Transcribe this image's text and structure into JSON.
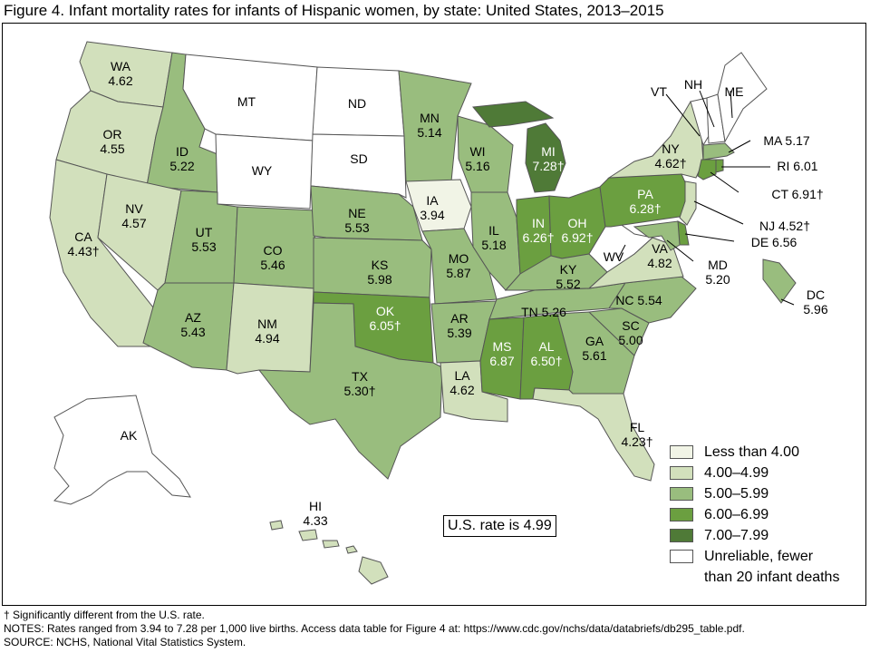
{
  "figure": {
    "title": "Figure 4. Infant mortality rates for infants of Hispanic women, by state: United States, 2013–2015",
    "us_rate_text": "U.S. rate is 4.99"
  },
  "colors": {
    "lt4": "#f1f4e6",
    "c4": "#d2e0bc",
    "c5": "#99bd7e",
    "c6": "#6b9f40",
    "c7": "#4f7a37",
    "unreliable": "#ffffff"
  },
  "legend": [
    {
      "cls": "lt4",
      "label": "Less than 4.00"
    },
    {
      "cls": "c4",
      "label": "4.00–4.99"
    },
    {
      "cls": "c5",
      "label": "5.00–5.99"
    },
    {
      "cls": "c6",
      "label": "6.00–6.99"
    },
    {
      "cls": "c7",
      "label": "7.00–7.99"
    },
    {
      "cls": "unreliable",
      "label": "Unreliable, fewer",
      "label2": "than 20 infant deaths"
    }
  ],
  "states": {
    "WA": {
      "abbr": "WA",
      "rate": "4.62",
      "cls": "c4"
    },
    "OR": {
      "abbr": "OR",
      "rate": "4.55",
      "cls": "c4"
    },
    "CA": {
      "abbr": "CA",
      "rate": "4.43†",
      "cls": "c4"
    },
    "ID": {
      "abbr": "ID",
      "rate": "5.22",
      "cls": "c5"
    },
    "NV": {
      "abbr": "NV",
      "rate": "4.57",
      "cls": "c4"
    },
    "MT": {
      "abbr": "MT",
      "rate": "",
      "cls": "unreliable"
    },
    "WY": {
      "abbr": "WY",
      "rate": "",
      "cls": "unreliable"
    },
    "UT": {
      "abbr": "UT",
      "rate": "5.53",
      "cls": "c5"
    },
    "AZ": {
      "abbr": "AZ",
      "rate": "5.43",
      "cls": "c5"
    },
    "CO": {
      "abbr": "CO",
      "rate": "5.46",
      "cls": "c5"
    },
    "NM": {
      "abbr": "NM",
      "rate": "4.94",
      "cls": "c4"
    },
    "ND": {
      "abbr": "ND",
      "rate": "",
      "cls": "unreliable"
    },
    "SD": {
      "abbr": "SD",
      "rate": "",
      "cls": "unreliable"
    },
    "NE": {
      "abbr": "NE",
      "rate": "5.53",
      "cls": "c5"
    },
    "KS": {
      "abbr": "KS",
      "rate": "5.98",
      "cls": "c5"
    },
    "OK": {
      "abbr": "OK",
      "rate": "6.05†",
      "cls": "c6"
    },
    "TX": {
      "abbr": "TX",
      "rate": "5.30†",
      "cls": "c5"
    },
    "MN": {
      "abbr": "MN",
      "rate": "5.14",
      "cls": "c5"
    },
    "IA": {
      "abbr": "IA",
      "rate": "3.94",
      "cls": "lt4"
    },
    "MO": {
      "abbr": "MO",
      "rate": "5.87",
      "cls": "c5"
    },
    "AR": {
      "abbr": "AR",
      "rate": "5.39",
      "cls": "c5"
    },
    "LA": {
      "abbr": "LA",
      "rate": "4.62",
      "cls": "c4"
    },
    "WI": {
      "abbr": "WI",
      "rate": "5.16",
      "cls": "c5"
    },
    "IL": {
      "abbr": "IL",
      "rate": "5.18",
      "cls": "c5"
    },
    "MI": {
      "abbr": "MI",
      "rate": "7.28†",
      "cls": "c7"
    },
    "IN": {
      "abbr": "IN",
      "rate": "6.26†",
      "cls": "c6"
    },
    "OH": {
      "abbr": "OH",
      "rate": "6.92†",
      "cls": "c6"
    },
    "KY": {
      "abbr": "KY",
      "rate": "5.52",
      "cls": "c5"
    },
    "TN": {
      "abbr": "TN",
      "rate": "5.26",
      "cls": "c5"
    },
    "MS": {
      "abbr": "MS",
      "rate": "6.87",
      "cls": "c6"
    },
    "AL": {
      "abbr": "AL",
      "rate": "6.50†",
      "cls": "c6"
    },
    "GA": {
      "abbr": "GA",
      "rate": "5.61",
      "cls": "c5"
    },
    "FL": {
      "abbr": "FL",
      "rate": "4.23†",
      "cls": "c4"
    },
    "SC": {
      "abbr": "SC",
      "rate": "5.00",
      "cls": "c5"
    },
    "NC": {
      "abbr": "NC",
      "rate": "5.54",
      "cls": "c5"
    },
    "VA": {
      "abbr": "VA",
      "rate": "4.82",
      "cls": "c4"
    },
    "WV": {
      "abbr": "WV",
      "rate": "",
      "cls": "unreliable"
    },
    "PA": {
      "abbr": "PA",
      "rate": "6.28†",
      "cls": "c6"
    },
    "NY": {
      "abbr": "NY",
      "rate": "4.62†",
      "cls": "c4"
    },
    "VT": {
      "abbr": "VT",
      "rate": "",
      "cls": "unreliable"
    },
    "NH": {
      "abbr": "NH",
      "rate": "",
      "cls": "unreliable"
    },
    "ME": {
      "abbr": "ME",
      "rate": "",
      "cls": "unreliable"
    },
    "MA": {
      "abbr": "MA",
      "rate": "5.17",
      "cls": "c5"
    },
    "RI": {
      "abbr": "RI",
      "rate": "6.01",
      "cls": "c6"
    },
    "CT": {
      "abbr": "CT",
      "rate": "6.91†",
      "cls": "c6"
    },
    "NJ": {
      "abbr": "NJ",
      "rate": "4.52†",
      "cls": "c4"
    },
    "DE": {
      "abbr": "DE",
      "rate": "6.56",
      "cls": "c6"
    },
    "MD": {
      "abbr": "MD",
      "rate": "5.20",
      "cls": "c5"
    },
    "DC": {
      "abbr": "DC",
      "rate": "5.96",
      "cls": "c5"
    },
    "AK": {
      "abbr": "AK",
      "rate": "",
      "cls": "unreliable"
    },
    "HI": {
      "abbr": "HI",
      "rate": "4.33",
      "cls": "c4"
    }
  },
  "footnotes": {
    "dagger": "† Significantly different from the U.S. rate.",
    "notes": "NOTES: Rates ranged from 3.94 to 7.28 per 1,000 live births. Access data table for Figure 4 at: https://www.cdc.gov/nchs/data/databriefs/db295_table.pdf.",
    "source": "SOURCE: NCHS, National Vital Statistics System."
  }
}
